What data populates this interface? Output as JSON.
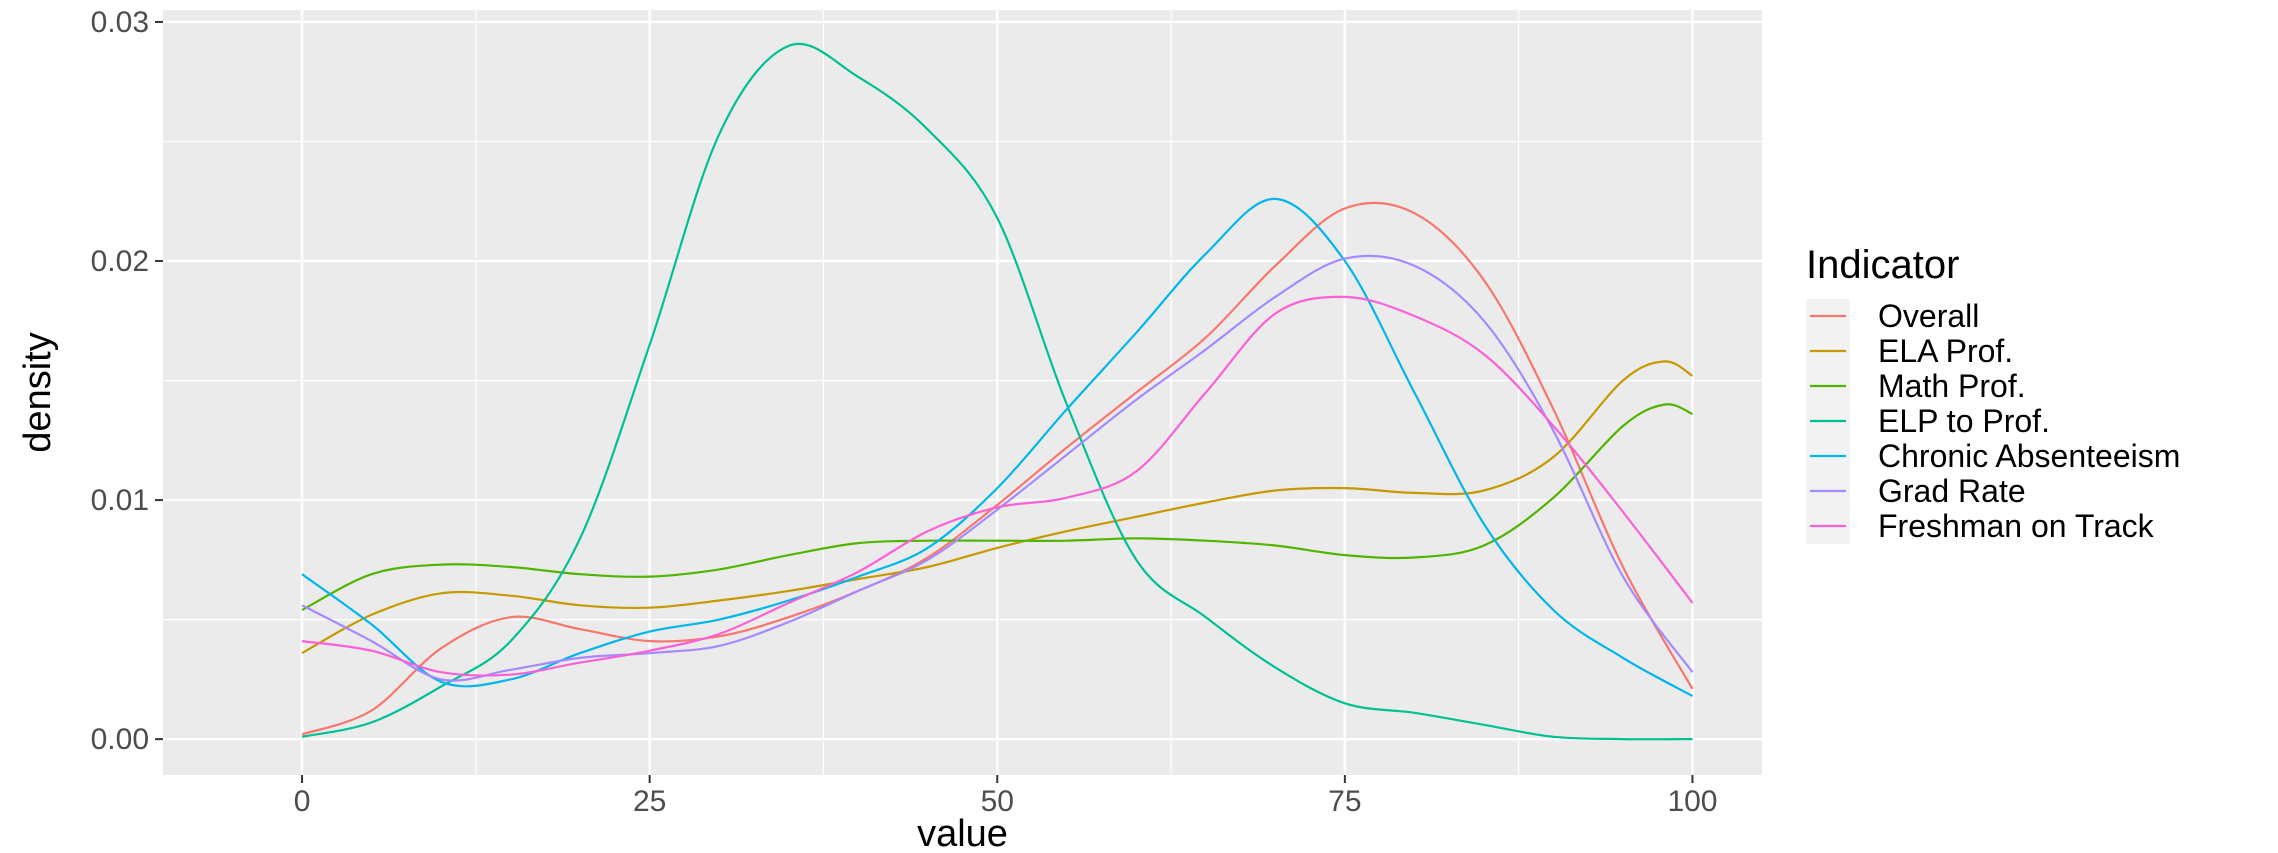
{
  "chart_data": {
    "type": "line",
    "xlabel": "value",
    "ylabel": "density",
    "xlim": [
      -10,
      105
    ],
    "ylim": [
      -0.0015,
      0.0305
    ],
    "x_ticks": [
      0,
      25,
      50,
      75,
      100
    ],
    "x_tick_labels": [
      "0",
      "25",
      "50",
      "75",
      "100"
    ],
    "y_ticks": [
      0.0,
      0.01,
      0.02,
      0.03
    ],
    "y_tick_labels": [
      "0.00",
      "0.01",
      "0.02",
      "0.03"
    ],
    "grid": true,
    "background": "#ebebeb",
    "legend": {
      "title": "Indicator",
      "position": "right"
    },
    "series": [
      {
        "name": "Overall",
        "color": "#F8766D",
        "points": [
          [
            0,
            0.0002
          ],
          [
            5,
            0.0012
          ],
          [
            10,
            0.0038
          ],
          [
            15,
            0.0051
          ],
          [
            20,
            0.0046
          ],
          [
            25,
            0.0041
          ],
          [
            30,
            0.0043
          ],
          [
            35,
            0.0051
          ],
          [
            40,
            0.0062
          ],
          [
            45,
            0.0076
          ],
          [
            50,
            0.0098
          ],
          [
            55,
            0.0122
          ],
          [
            60,
            0.0145
          ],
          [
            65,
            0.0168
          ],
          [
            70,
            0.0198
          ],
          [
            75,
            0.0222
          ],
          [
            80,
            0.022
          ],
          [
            85,
            0.0192
          ],
          [
            90,
            0.0138
          ],
          [
            95,
            0.0072
          ],
          [
            100,
            0.0021
          ]
        ]
      },
      {
        "name": "ELA Prof.",
        "color": "#C49A00",
        "points": [
          [
            0,
            0.0036
          ],
          [
            5,
            0.0052
          ],
          [
            10,
            0.0061
          ],
          [
            15,
            0.006
          ],
          [
            20,
            0.0056
          ],
          [
            25,
            0.0055
          ],
          [
            30,
            0.0058
          ],
          [
            35,
            0.0062
          ],
          [
            40,
            0.0067
          ],
          [
            45,
            0.0072
          ],
          [
            50,
            0.008
          ],
          [
            55,
            0.0087
          ],
          [
            60,
            0.0093
          ],
          [
            65,
            0.0099
          ],
          [
            70,
            0.0104
          ],
          [
            75,
            0.0105
          ],
          [
            80,
            0.0103
          ],
          [
            85,
            0.0104
          ],
          [
            90,
            0.0118
          ],
          [
            95,
            0.015
          ],
          [
            98,
            0.0158
          ],
          [
            100,
            0.0152
          ]
        ]
      },
      {
        "name": "Math Prof.",
        "color": "#53B400",
        "points": [
          [
            0,
            0.0054
          ],
          [
            5,
            0.0069
          ],
          [
            10,
            0.0073
          ],
          [
            15,
            0.0072
          ],
          [
            20,
            0.0069
          ],
          [
            25,
            0.0068
          ],
          [
            30,
            0.0071
          ],
          [
            35,
            0.0077
          ],
          [
            40,
            0.0082
          ],
          [
            45,
            0.0083
          ],
          [
            50,
            0.0083
          ],
          [
            55,
            0.0083
          ],
          [
            60,
            0.0084
          ],
          [
            65,
            0.0083
          ],
          [
            70,
            0.0081
          ],
          [
            75,
            0.0077
          ],
          [
            80,
            0.0076
          ],
          [
            85,
            0.0081
          ],
          [
            90,
            0.0101
          ],
          [
            95,
            0.0131
          ],
          [
            98,
            0.014
          ],
          [
            100,
            0.0136
          ]
        ]
      },
      {
        "name": "ELP to Prof.",
        "color": "#00C094",
        "points": [
          [
            0,
            0.0001
          ],
          [
            5,
            0.0007
          ],
          [
            10,
            0.0022
          ],
          [
            15,
            0.0041
          ],
          [
            20,
            0.0084
          ],
          [
            25,
            0.0165
          ],
          [
            30,
            0.0253
          ],
          [
            35,
            0.029
          ],
          [
            40,
            0.0277
          ],
          [
            45,
            0.0255
          ],
          [
            50,
            0.0218
          ],
          [
            55,
            0.014
          ],
          [
            60,
            0.0075
          ],
          [
            65,
            0.0051
          ],
          [
            70,
            0.003
          ],
          [
            75,
            0.0015
          ],
          [
            80,
            0.0011
          ],
          [
            85,
            0.0006
          ],
          [
            90,
            0.0001
          ],
          [
            95,
            0.0
          ],
          [
            100,
            0.0
          ]
        ]
      },
      {
        "name": "Chronic Absenteeism",
        "color": "#00B6EB",
        "points": [
          [
            0,
            0.0069
          ],
          [
            5,
            0.0048
          ],
          [
            10,
            0.0024
          ],
          [
            15,
            0.0025
          ],
          [
            20,
            0.0036
          ],
          [
            25,
            0.0045
          ],
          [
            30,
            0.005
          ],
          [
            35,
            0.0058
          ],
          [
            40,
            0.0068
          ],
          [
            45,
            0.008
          ],
          [
            50,
            0.0105
          ],
          [
            55,
            0.0138
          ],
          [
            60,
            0.017
          ],
          [
            65,
            0.0203
          ],
          [
            70,
            0.0226
          ],
          [
            75,
            0.02
          ],
          [
            80,
            0.0145
          ],
          [
            85,
            0.009
          ],
          [
            90,
            0.0054
          ],
          [
            95,
            0.0034
          ],
          [
            100,
            0.0018
          ]
        ]
      },
      {
        "name": "Grad Rate",
        "color": "#A58AFF",
        "points": [
          [
            0,
            0.0056
          ],
          [
            5,
            0.0041
          ],
          [
            10,
            0.0025
          ],
          [
            15,
            0.0029
          ],
          [
            20,
            0.0034
          ],
          [
            25,
            0.0036
          ],
          [
            30,
            0.0039
          ],
          [
            35,
            0.0049
          ],
          [
            40,
            0.0062
          ],
          [
            45,
            0.0075
          ],
          [
            50,
            0.0096
          ],
          [
            55,
            0.0119
          ],
          [
            60,
            0.0142
          ],
          [
            65,
            0.0163
          ],
          [
            70,
            0.0185
          ],
          [
            75,
            0.0201
          ],
          [
            80,
            0.0198
          ],
          [
            85,
            0.0175
          ],
          [
            90,
            0.0129
          ],
          [
            95,
            0.0068
          ],
          [
            100,
            0.0028
          ]
        ]
      },
      {
        "name": "Freshman on Track",
        "color": "#FB61D7",
        "points": [
          [
            0,
            0.0041
          ],
          [
            5,
            0.0037
          ],
          [
            10,
            0.0028
          ],
          [
            15,
            0.0027
          ],
          [
            20,
            0.0032
          ],
          [
            25,
            0.0037
          ],
          [
            30,
            0.0044
          ],
          [
            35,
            0.0057
          ],
          [
            40,
            0.007
          ],
          [
            45,
            0.0087
          ],
          [
            50,
            0.0097
          ],
          [
            55,
            0.0101
          ],
          [
            60,
            0.0112
          ],
          [
            65,
            0.0145
          ],
          [
            70,
            0.0178
          ],
          [
            75,
            0.0185
          ],
          [
            80,
            0.0177
          ],
          [
            85,
            0.0161
          ],
          [
            90,
            0.0131
          ],
          [
            95,
            0.0095
          ],
          [
            100,
            0.0057
          ]
        ]
      }
    ]
  }
}
